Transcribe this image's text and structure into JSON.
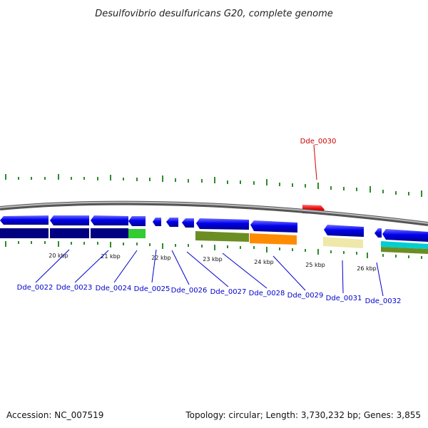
{
  "title": "Desulfovibrio desulfuricans G20, complete genome",
  "footer": {
    "accession": "Accession: NC_007519",
    "topology": "Topology: circular; Length: 3,730,232 bp; Genes: 3,855"
  },
  "scale_labels": [
    "20 kbp",
    "21 kbp",
    "22 kbp",
    "23 kbp",
    "24 kbp",
    "25 kbp",
    "26 kbp"
  ],
  "gene_labels": [
    "Dde_0022",
    "Dde_0023",
    "Dde_0024",
    "Dde_0025",
    "Dde_0026",
    "Dde_0027",
    "Dde_0028",
    "Dde_0029",
    "Dde_0030",
    "Dde_0031",
    "Dde_0032"
  ],
  "colors": {
    "backbone": "#888888",
    "forward_gene": "#cc0000",
    "reverse_gene": "#0000ee",
    "tick": "#2e8b2e",
    "label_blue": "#0000cc",
    "label_red": "#cc0000",
    "cog_navy": "#000080",
    "cog_green": "#33cc33",
    "cog_olive": "#6b8e23",
    "cog_orange": "#ff8c00",
    "cog_khaki": "#eee8aa",
    "cog_cyan": "#00ced1"
  }
}
